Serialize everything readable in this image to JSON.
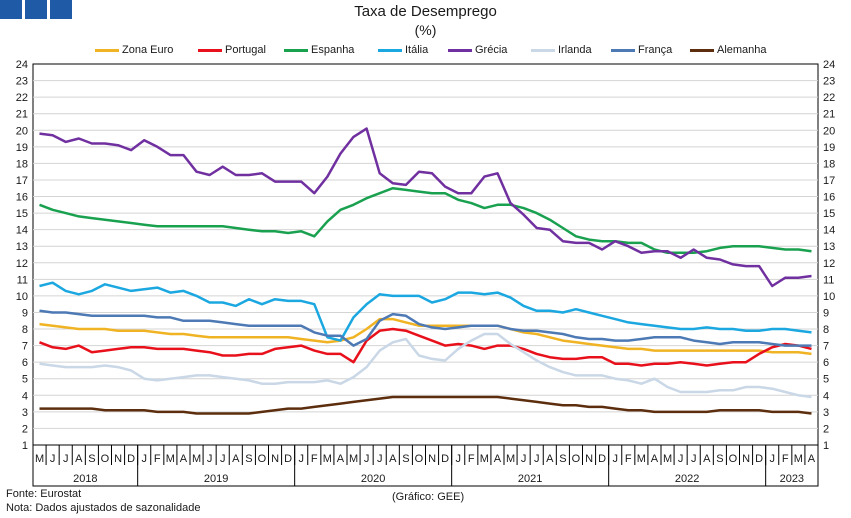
{
  "header": {
    "title": "Taxa de Desemprego",
    "subtitle": "(%)",
    "logo_colors": [
      "#1f5aa6",
      "#1f5aa6",
      "#1f5aa6"
    ]
  },
  "footer": {
    "source": "Fonte: Eurostat",
    "note": "Nota: Dados ajustados de sazonalidade",
    "credit": "(Gráfico: GEE)"
  },
  "chart_data": {
    "type": "line",
    "title": "Taxa de Desemprego",
    "subtitle": "(%)",
    "ylim": [
      1,
      24
    ],
    "yticks": [
      1,
      2,
      3,
      4,
      5,
      6,
      7,
      8,
      9,
      10,
      11,
      12,
      13,
      14,
      15,
      16,
      17,
      18,
      19,
      20,
      21,
      22,
      23,
      24
    ],
    "grid": true,
    "legend_position": "top",
    "x": [
      "M",
      "J",
      "J",
      "A",
      "S",
      "O",
      "N",
      "D",
      "J",
      "F",
      "M",
      "A",
      "M",
      "J",
      "J",
      "A",
      "S",
      "O",
      "N",
      "D",
      "J",
      "F",
      "M",
      "A",
      "M",
      "J",
      "J",
      "A",
      "S",
      "O",
      "N",
      "D",
      "J",
      "F",
      "M",
      "A",
      "M",
      "J",
      "J",
      "A",
      "S",
      "O",
      "N",
      "D",
      "J",
      "F",
      "M",
      "A",
      "M",
      "J",
      "J",
      "A",
      "S",
      "O",
      "N",
      "D",
      "J",
      "F",
      "M",
      "A"
    ],
    "years": [
      {
        "label": "2018",
        "start": 0,
        "end": 7
      },
      {
        "label": "2019",
        "start": 8,
        "end": 19
      },
      {
        "label": "2020",
        "start": 20,
        "end": 31
      },
      {
        "label": "2021",
        "start": 32,
        "end": 43
      },
      {
        "label": "2022",
        "start": 44,
        "end": 55
      },
      {
        "label": "2023",
        "start": 56,
        "end": 59
      }
    ],
    "series": [
      {
        "name": "Zona Euro",
        "color": "#f0b323",
        "values": [
          8.3,
          8.2,
          8.1,
          8.0,
          8.0,
          8.0,
          7.9,
          7.9,
          7.9,
          7.8,
          7.7,
          7.7,
          7.6,
          7.5,
          7.5,
          7.5,
          7.5,
          7.5,
          7.5,
          7.5,
          7.4,
          7.3,
          7.2,
          7.3,
          7.5,
          8.0,
          8.6,
          8.6,
          8.4,
          8.2,
          8.2,
          8.2,
          8.2,
          8.2,
          8.2,
          8.2,
          8.0,
          7.8,
          7.7,
          7.5,
          7.3,
          7.2,
          7.1,
          7.0,
          6.9,
          6.8,
          6.8,
          6.7,
          6.7,
          6.7,
          6.7,
          6.7,
          6.7,
          6.7,
          6.7,
          6.7,
          6.6,
          6.6,
          6.6,
          6.5
        ]
      },
      {
        "name": "Portugal",
        "color": "#e8101b",
        "values": [
          7.2,
          6.9,
          6.8,
          7.0,
          6.6,
          6.7,
          6.8,
          6.9,
          6.9,
          6.8,
          6.8,
          6.8,
          6.7,
          6.6,
          6.4,
          6.4,
          6.5,
          6.5,
          6.8,
          6.9,
          7.0,
          6.7,
          6.5,
          6.5,
          6.0,
          7.3,
          7.9,
          8.0,
          7.9,
          7.6,
          7.3,
          7.0,
          7.1,
          7.0,
          6.8,
          7.0,
          7.0,
          6.8,
          6.5,
          6.3,
          6.2,
          6.2,
          6.3,
          6.3,
          5.9,
          5.9,
          5.8,
          5.9,
          5.9,
          6.0,
          5.9,
          5.8,
          5.9,
          6.0,
          6.0,
          6.5,
          6.9,
          7.1,
          7.0,
          6.8
        ]
      },
      {
        "name": "Espanha",
        "color": "#1aa150",
        "values": [
          15.5,
          15.2,
          15.0,
          14.8,
          14.7,
          14.6,
          14.5,
          14.4,
          14.3,
          14.2,
          14.2,
          14.2,
          14.2,
          14.2,
          14.2,
          14.1,
          14.0,
          13.9,
          13.9,
          13.8,
          13.9,
          13.6,
          14.5,
          15.2,
          15.5,
          15.9,
          16.2,
          16.5,
          16.4,
          16.3,
          16.2,
          16.2,
          15.8,
          15.6,
          15.3,
          15.5,
          15.5,
          15.3,
          15.0,
          14.6,
          14.1,
          13.6,
          13.4,
          13.3,
          13.3,
          13.2,
          13.2,
          12.8,
          12.6,
          12.6,
          12.6,
          12.7,
          12.9,
          13.0,
          13.0,
          13.0,
          12.9,
          12.8,
          12.8,
          12.7
        ]
      },
      {
        "name": "Itália",
        "color": "#1ba7e0",
        "values": [
          10.6,
          10.8,
          10.3,
          10.1,
          10.3,
          10.7,
          10.5,
          10.3,
          10.4,
          10.5,
          10.2,
          10.3,
          10.0,
          9.6,
          9.6,
          9.4,
          9.8,
          9.5,
          9.8,
          9.7,
          9.7,
          9.5,
          7.5,
          7.3,
          8.7,
          9.5,
          10.1,
          10.0,
          10.0,
          10.0,
          9.6,
          9.8,
          10.2,
          10.2,
          10.1,
          10.2,
          9.9,
          9.4,
          9.1,
          9.1,
          9.0,
          9.2,
          9.0,
          8.8,
          8.6,
          8.4,
          8.3,
          8.2,
          8.1,
          8.0,
          8.0,
          8.1,
          8.0,
          8.0,
          7.9,
          7.9,
          8.0,
          8.0,
          7.9,
          7.8
        ]
      },
      {
        "name": "Grécia",
        "color": "#7030a0",
        "values": [
          19.8,
          19.7,
          19.3,
          19.5,
          19.2,
          19.2,
          19.1,
          18.8,
          19.4,
          19.0,
          18.5,
          18.5,
          17.5,
          17.3,
          17.8,
          17.3,
          17.3,
          17.4,
          16.9,
          16.9,
          16.9,
          16.2,
          17.2,
          18.6,
          19.6,
          20.1,
          17.4,
          16.8,
          16.7,
          17.5,
          17.4,
          16.6,
          16.2,
          16.2,
          17.2,
          17.4,
          15.6,
          14.9,
          14.1,
          14.0,
          13.3,
          13.2,
          13.2,
          12.8,
          13.3,
          13.0,
          12.6,
          12.7,
          12.7,
          12.3,
          12.8,
          12.3,
          12.2,
          11.9,
          11.8,
          11.8,
          10.6,
          11.1,
          11.1,
          11.2
        ]
      },
      {
        "name": "Irlanda",
        "color": "#c9d7e6",
        "values": [
          5.9,
          5.8,
          5.7,
          5.7,
          5.7,
          5.8,
          5.7,
          5.5,
          5.0,
          4.9,
          5.0,
          5.1,
          5.2,
          5.2,
          5.1,
          5.0,
          4.9,
          4.7,
          4.7,
          4.8,
          4.8,
          4.8,
          4.9,
          4.7,
          5.1,
          5.7,
          6.7,
          7.2,
          7.4,
          6.4,
          6.2,
          6.1,
          6.8,
          7.3,
          7.7,
          7.7,
          7.1,
          6.6,
          6.1,
          5.7,
          5.4,
          5.2,
          5.2,
          5.2,
          5.0,
          4.9,
          4.7,
          5.0,
          4.5,
          4.2,
          4.2,
          4.2,
          4.3,
          4.3,
          4.5,
          4.5,
          4.4,
          4.2,
          4.0,
          3.9
        ]
      },
      {
        "name": "França",
        "color": "#4d79b4",
        "values": [
          9.1,
          9.0,
          9.0,
          8.9,
          8.8,
          8.8,
          8.8,
          8.8,
          8.8,
          8.7,
          8.7,
          8.5,
          8.5,
          8.5,
          8.4,
          8.3,
          8.2,
          8.2,
          8.2,
          8.2,
          8.2,
          7.8,
          7.6,
          7.6,
          7.0,
          7.4,
          8.5,
          8.9,
          8.8,
          8.3,
          8.1,
          8.0,
          8.1,
          8.2,
          8.2,
          8.2,
          8.0,
          7.9,
          7.9,
          7.8,
          7.7,
          7.5,
          7.4,
          7.4,
          7.3,
          7.3,
          7.4,
          7.5,
          7.5,
          7.5,
          7.3,
          7.2,
          7.1,
          7.2,
          7.2,
          7.2,
          7.1,
          7.0,
          7.0,
          7.0
        ]
      },
      {
        "name": "Alemanha",
        "color": "#5c2e0e",
        "values": [
          3.2,
          3.2,
          3.2,
          3.2,
          3.2,
          3.1,
          3.1,
          3.1,
          3.1,
          3.0,
          3.0,
          3.0,
          2.9,
          2.9,
          2.9,
          2.9,
          2.9,
          3.0,
          3.1,
          3.2,
          3.2,
          3.3,
          3.4,
          3.5,
          3.6,
          3.7,
          3.8,
          3.9,
          3.9,
          3.9,
          3.9,
          3.9,
          3.9,
          3.9,
          3.9,
          3.9,
          3.8,
          3.7,
          3.6,
          3.5,
          3.4,
          3.4,
          3.3,
          3.3,
          3.2,
          3.1,
          3.1,
          3.0,
          3.0,
          3.0,
          3.0,
          3.0,
          3.1,
          3.1,
          3.1,
          3.1,
          3.0,
          3.0,
          3.0,
          2.9
        ]
      }
    ]
  }
}
